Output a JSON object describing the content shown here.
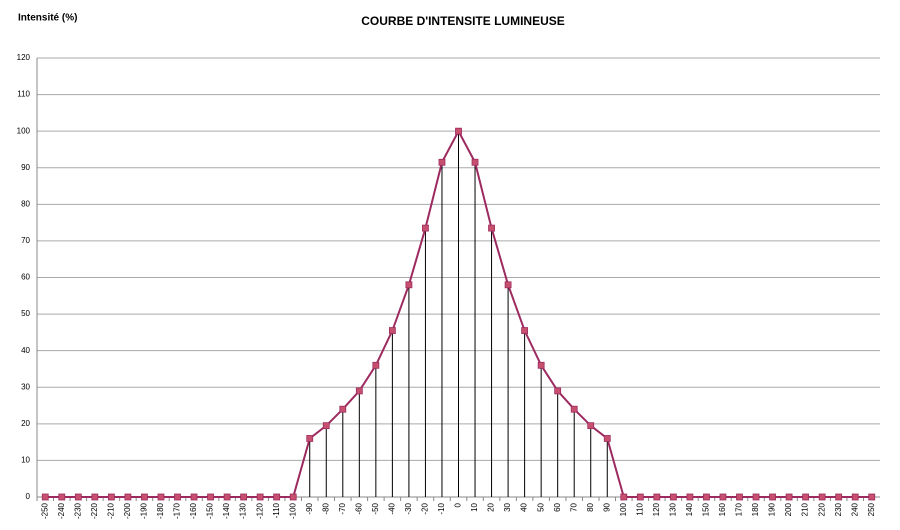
{
  "chart_data": {
    "type": "line",
    "title": "COURBE D'INTENSITE LUMINEUSE",
    "y_label": "Intensité (%)",
    "categories": [
      "-250",
      "-240",
      "-230",
      "-220",
      "-210",
      "-200",
      "-190",
      "-180",
      "-170",
      "-160",
      "-150",
      "-140",
      "-130",
      "-120",
      "-110",
      "-100",
      "-90",
      "-80",
      "-70",
      "-60",
      "-50",
      "-40",
      "-30",
      "-20",
      "-10",
      "0",
      "10",
      "20",
      "30",
      "40",
      "50",
      "60",
      "70",
      "80",
      "90",
      "100",
      "110",
      "120",
      "130",
      "140",
      "150",
      "160",
      "170",
      "180",
      "190",
      "200",
      "210",
      "220",
      "230",
      "240",
      "250"
    ],
    "values": [
      0,
      0,
      0,
      0,
      0,
      0,
      0,
      0,
      0,
      0,
      0,
      0,
      0,
      0,
      0,
      0,
      16,
      19.5,
      24,
      29,
      36,
      45.5,
      58,
      73.5,
      91.5,
      100,
      91.5,
      73.5,
      58,
      45.5,
      36,
      29,
      24,
      19.5,
      16,
      0,
      0,
      0,
      0,
      0,
      0,
      0,
      0,
      0,
      0,
      0,
      0,
      0,
      0,
      0,
      0
    ],
    "color": "#9c2a5f",
    "marker_color": "#c8506f",
    "drop_lines": true,
    "ylim": [
      0,
      120
    ],
    "yticks": [
      0,
      10,
      20,
      30,
      40,
      50,
      60,
      70,
      80,
      90,
      100,
      110,
      120
    ],
    "grid": true
  }
}
